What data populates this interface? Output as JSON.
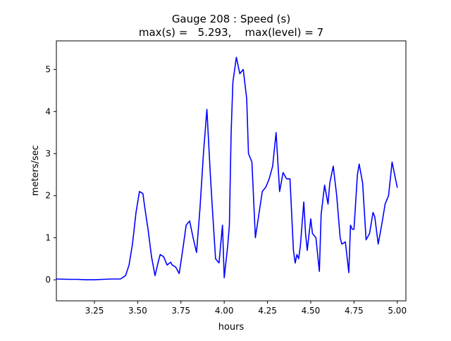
{
  "chart_data": {
    "type": "line",
    "title_line1": "Gauge 208 : Speed (s)",
    "title_line2": "max(s) =   5.293,    max(level) = 7",
    "xlabel": "hours",
    "ylabel": "meters/sec",
    "xlim": [
      3.03,
      5.05
    ],
    "ylim": [
      -0.5,
      5.68
    ],
    "xticks": [
      3.25,
      3.5,
      3.75,
      4.0,
      4.25,
      4.5,
      4.75,
      5.0
    ],
    "xtick_labels": [
      "3.25",
      "3.50",
      "3.75",
      "4.00",
      "4.25",
      "4.50",
      "4.75",
      "5.00"
    ],
    "yticks": [
      0,
      1,
      2,
      3,
      4,
      5
    ],
    "ytick_labels": [
      "0",
      "1",
      "2",
      "3",
      "4",
      "5"
    ],
    "grid": false,
    "line_color": "#0000ff",
    "series": [
      {
        "name": "",
        "x": [
          3.03,
          3.1,
          3.15,
          3.2,
          3.25,
          3.3,
          3.35,
          3.4,
          3.43,
          3.45,
          3.47,
          3.49,
          3.51,
          3.53,
          3.54,
          3.56,
          3.58,
          3.6,
          3.62,
          3.63,
          3.65,
          3.67,
          3.69,
          3.7,
          3.72,
          3.74,
          3.76,
          3.78,
          3.8,
          3.82,
          3.84,
          3.86,
          3.88,
          3.9,
          3.92,
          3.93,
          3.95,
          3.97,
          3.99,
          4.0,
          4.02,
          4.03,
          4.04,
          4.05,
          4.07,
          4.09,
          4.11,
          4.13,
          4.14,
          4.16,
          4.18,
          4.2,
          4.22,
          4.24,
          4.25,
          4.26,
          4.28,
          4.3,
          4.32,
          4.34,
          4.36,
          4.38,
          4.4,
          4.41,
          4.42,
          4.43,
          4.44,
          4.46,
          4.47,
          4.48,
          4.5,
          4.51,
          4.53,
          4.55,
          4.56,
          4.58,
          4.6,
          4.61,
          4.63,
          4.65,
          4.67,
          4.68,
          4.7,
          4.72,
          4.73,
          4.74,
          4.75,
          4.77,
          4.78,
          4.8,
          4.82,
          4.84,
          4.86,
          4.87,
          4.89,
          4.91,
          4.93,
          4.95,
          4.97,
          4.98,
          5.0
        ],
        "y": [
          0.02,
          0.01,
          0.01,
          0.0,
          0.0,
          0.01,
          0.02,
          0.02,
          0.1,
          0.35,
          0.85,
          1.6,
          2.1,
          2.05,
          1.75,
          1.2,
          0.55,
          0.1,
          0.45,
          0.6,
          0.55,
          0.35,
          0.42,
          0.35,
          0.3,
          0.15,
          0.7,
          1.3,
          1.4,
          1.0,
          0.65,
          1.7,
          3.0,
          4.05,
          2.5,
          1.8,
          0.5,
          0.4,
          1.3,
          0.05,
          0.8,
          1.3,
          3.5,
          4.7,
          5.29,
          4.9,
          5.0,
          4.3,
          3.0,
          2.8,
          1.0,
          1.55,
          2.1,
          2.2,
          2.3,
          2.4,
          2.7,
          3.5,
          2.1,
          2.55,
          2.4,
          2.4,
          0.7,
          0.4,
          0.6,
          0.5,
          0.8,
          1.85,
          1.1,
          0.7,
          1.45,
          1.1,
          1.0,
          0.2,
          1.55,
          2.25,
          1.8,
          2.3,
          2.7,
          2.0,
          1.0,
          0.85,
          0.9,
          0.17,
          1.3,
          1.2,
          1.2,
          2.5,
          2.75,
          2.3,
          0.95,
          1.1,
          1.6,
          1.5,
          0.85,
          1.3,
          1.8,
          2.0,
          2.8,
          2.6,
          2.2
        ]
      }
    ]
  }
}
